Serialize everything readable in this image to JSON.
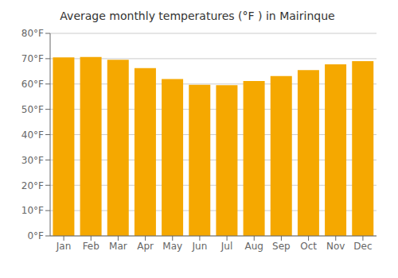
{
  "chart_data": {
    "type": "bar",
    "title": "Average monthly temperatures (°F ) in Mairinque",
    "categories": [
      "Jan",
      "Feb",
      "Mar",
      "Apr",
      "May",
      "Jun",
      "Jul",
      "Aug",
      "Sep",
      "Oct",
      "Nov",
      "Dec"
    ],
    "values": [
      70.5,
      70.7,
      69.6,
      66.3,
      62.0,
      59.7,
      59.5,
      61.2,
      63.1,
      65.5,
      67.8,
      69.0
    ],
    "color": "#F5A800",
    "ylim": [
      0,
      80
    ],
    "yticks": [
      {
        "value": 0,
        "label": "0°F"
      },
      {
        "value": 10,
        "label": "10°F"
      },
      {
        "value": 20,
        "label": "20°F"
      },
      {
        "value": 30,
        "label": "30°F"
      },
      {
        "value": 40,
        "label": "40°F"
      },
      {
        "value": 50,
        "label": "50°F"
      },
      {
        "value": 60,
        "label": "60°F"
      },
      {
        "value": 70,
        "label": "70°F"
      },
      {
        "value": 80,
        "label": "80°F"
      }
    ],
    "grid": true
  }
}
